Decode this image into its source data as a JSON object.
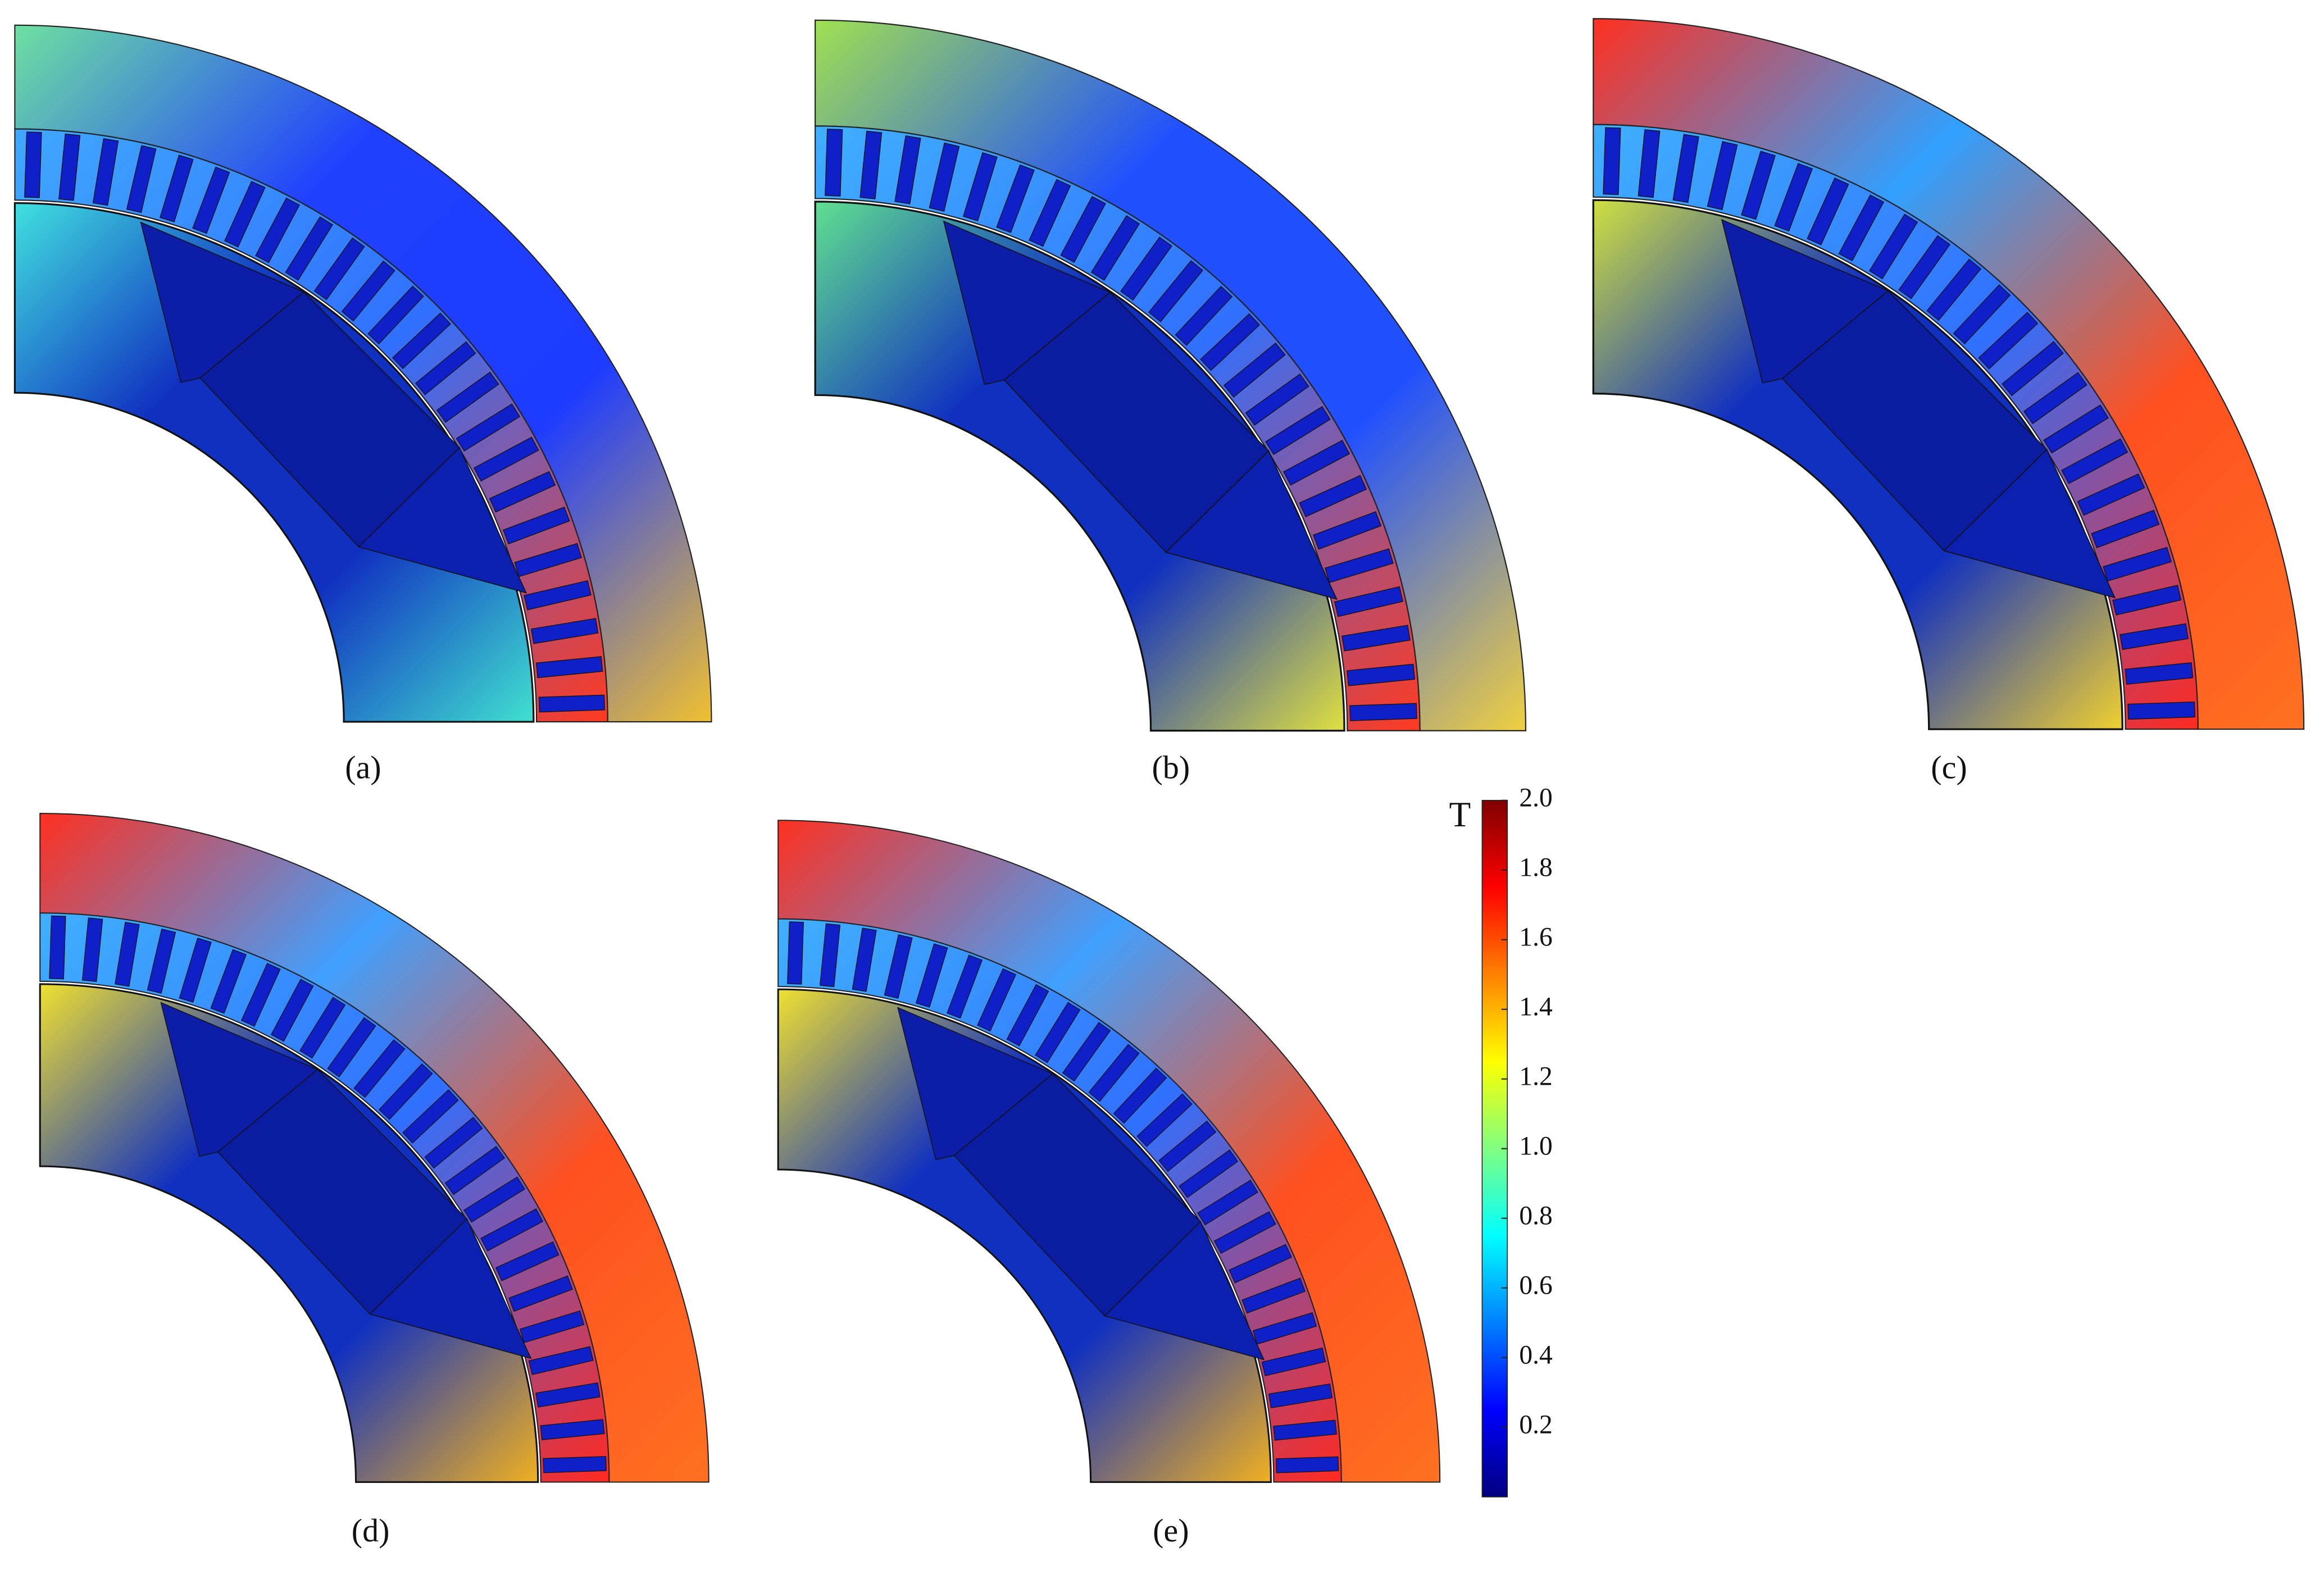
{
  "figure": {
    "panels": [
      {
        "label": "(a)"
      },
      {
        "label": "(b)"
      },
      {
        "label": "(c)"
      },
      {
        "label": "(d)"
      },
      {
        "label": "(e)"
      }
    ],
    "colorbar": {
      "unit": "T",
      "range": [
        0,
        2
      ],
      "ticks": [
        0.2,
        0.4,
        0.6,
        0.8,
        {
          "value": 1,
          "label": "1.0"
        },
        1.2,
        1.4,
        1.6,
        1.8,
        {
          "value": 2,
          "label": "2.0"
        }
      ]
    }
  }
}
